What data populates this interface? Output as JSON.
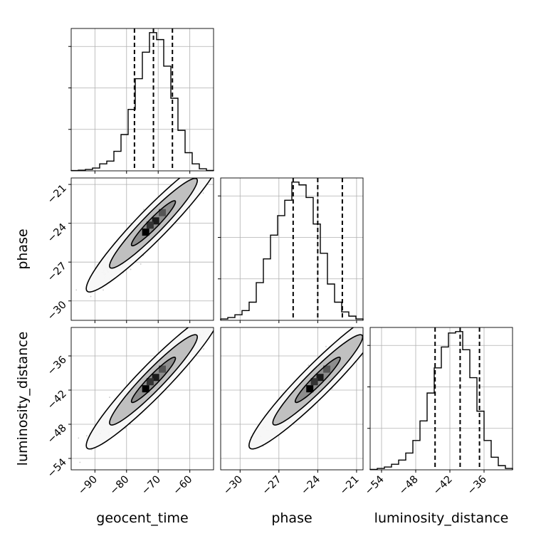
{
  "chart_data": {
    "type": "corner",
    "parameters": [
      {
        "name": "geocent_time",
        "label": "geocent_time",
        "range": [
          -97.5,
          -52.5
        ],
        "ticks": [
          -90,
          -80,
          -70,
          -60
        ],
        "tick_labels": [
          "−90",
          "−80",
          "−70",
          "−60"
        ],
        "mean": -71.5,
        "sigma": 7.0,
        "quantiles": [
          -77.5,
          -71.5,
          -65.5
        ]
      },
      {
        "name": "phase",
        "label": "phase",
        "range": [
          -31.5,
          -20.5
        ],
        "ticks": [
          -30,
          -27,
          -24,
          -21
        ],
        "tick_labels": [
          "−30",
          "−27",
          "−24",
          "−21"
        ],
        "mean": -24.0,
        "sigma": 1.75,
        "quantiles": [
          -25.9,
          -24.0,
          -22.1
        ]
      },
      {
        "name": "luminosity_distance",
        "label": "luminosity_distance",
        "range": [
          -56,
          -31
        ],
        "ticks": [
          -54,
          -48,
          -42,
          -36
        ],
        "tick_labels": [
          "−54",
          "−48",
          "−42",
          "−36"
        ],
        "mean": -40.2,
        "sigma": 4.0,
        "quantiles": [
          -44.6,
          -40.2,
          -36.8
        ]
      }
    ],
    "histograms": [
      {
        "param": "geocent_time",
        "bin_edges": [
          -97.5,
          -95.25,
          -93,
          -90.75,
          -88.5,
          -86.25,
          -84,
          -81.75,
          -79.5,
          -77.25,
          -75,
          -72.75,
          -70.5,
          -68.25,
          -66,
          -63.75,
          -61.5,
          -59.25,
          -57,
          -54.75,
          -52.5
        ],
        "counts": [
          0.2,
          0.5,
          1,
          2,
          5,
          7,
          14,
          26,
          44,
          66,
          85,
          99,
          94,
          75,
          52,
          29,
          13,
          5,
          1.5,
          0.3
        ],
        "yticks": [
          0.3,
          0.6,
          0.9
        ]
      },
      {
        "param": "phase",
        "bin_edges": [
          -31.5,
          -30.95,
          -30.4,
          -29.85,
          -29.3,
          -28.75,
          -28.2,
          -27.65,
          -27.1,
          -26.55,
          -26,
          -25.45,
          -24.9,
          -24.35,
          -23.8,
          -23.25,
          -22.7,
          -22.15,
          -21.6,
          -21.05,
          -20.5
        ],
        "counts": [
          1,
          2,
          4,
          7,
          13,
          27,
          44,
          61,
          75,
          86,
          99,
          97,
          88,
          69,
          48,
          26,
          13,
          6,
          3,
          1
        ],
        "yticks": [
          0.3,
          0.6,
          0.9
        ]
      },
      {
        "param": "luminosity_distance",
        "bin_edges": [
          -56,
          -54.75,
          -53.5,
          -52.25,
          -51,
          -49.75,
          -48.5,
          -47.25,
          -46,
          -44.75,
          -43.5,
          -42.25,
          -41,
          -39.75,
          -38.5,
          -37.25,
          -36,
          -34.75,
          -33.5,
          -32.25,
          -31
        ],
        "counts": [
          0.3,
          1,
          2,
          4,
          7,
          12,
          21,
          35,
          55,
          73,
          88,
          98,
          99,
          86,
          66,
          42,
          21,
          9,
          3,
          1
        ],
        "yticks": [
          0.3,
          0.6,
          0.9
        ]
      }
    ],
    "correlation": 0.95,
    "contour_levels": [
      0.39,
      0.86,
      0.99
    ],
    "grid": true,
    "colors": {
      "line": "#000000",
      "quantile_line": "#000000",
      "grid": "#b0b0b0",
      "scatter": "#000000"
    }
  }
}
